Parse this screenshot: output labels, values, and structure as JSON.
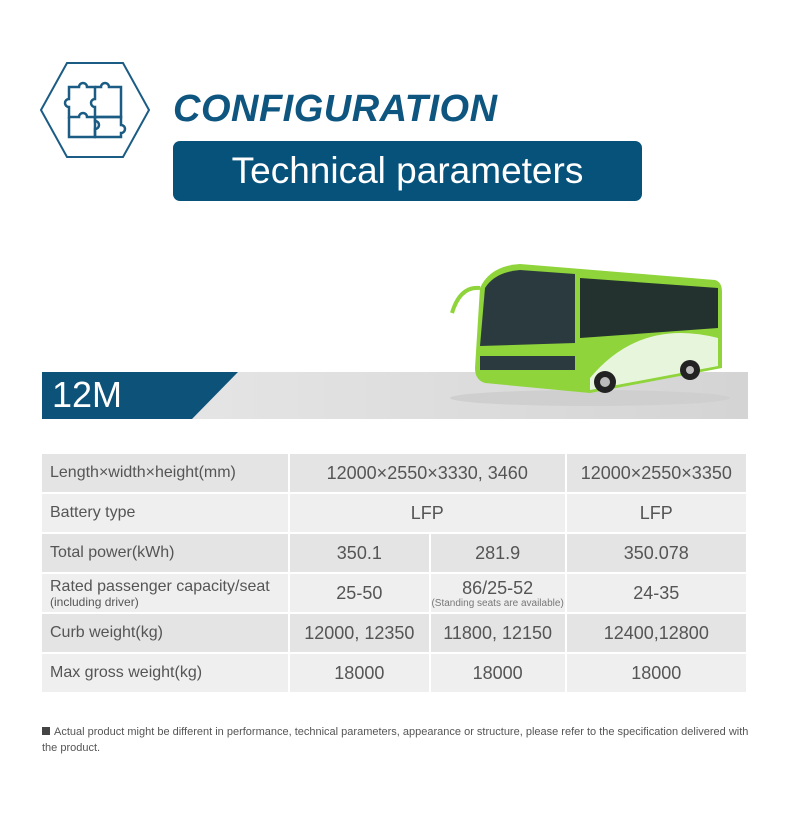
{
  "header": {
    "title": "CONFIGURATION",
    "subtitle": "Technical parameters",
    "icon": "puzzle-icon"
  },
  "model": {
    "label": "12M"
  },
  "colors": {
    "primary": "#07527b",
    "bus": "#8ed43a"
  },
  "table": {
    "rows": [
      {
        "label": "Length×width×height(mm)",
        "cells": [
          "12000×2550×3330, 3460",
          "12000×2550×3350"
        ]
      },
      {
        "label": "Battery type",
        "cells": [
          "LFP",
          "LFP"
        ]
      },
      {
        "label": "Total power(kWh)",
        "cells": [
          "350.1",
          "281.9",
          "350.078"
        ]
      },
      {
        "label": "Rated passenger capacity/seat",
        "sublabel": "(including driver)",
        "cells": [
          "25-50",
          "86/25-52",
          "24-35"
        ],
        "cell_note": "(Standing seats are available)"
      },
      {
        "label": "Curb weight(kg)",
        "cells": [
          "12000, 12350",
          "11800, 12150",
          "12400,12800"
        ]
      },
      {
        "label": "Max gross weight(kg)",
        "cells": [
          "18000",
          "18000",
          "18000"
        ]
      }
    ]
  },
  "note": "Actual product might be different in performance, technical parameters, appearance or structure, please refer to the specification delivered with the product."
}
